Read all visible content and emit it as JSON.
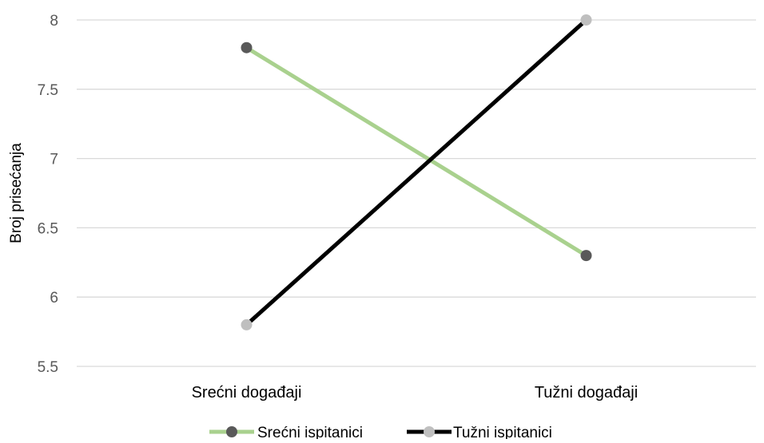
{
  "chart_data": {
    "type": "line",
    "title": "",
    "xlabel": "",
    "ylabel": "Broj prisećanja",
    "categories": [
      "Srećni događaji",
      "Tužni događaji"
    ],
    "ylim": [
      5.5,
      8
    ],
    "yticks": [
      "5.5",
      "6",
      "6.5",
      "7",
      "7.5",
      "8"
    ],
    "grid": true,
    "legend_position": "bottom",
    "series": [
      {
        "name": "Srećni ispitanici",
        "values": [
          7.8,
          6.3
        ],
        "line_color": "#a9d18e",
        "marker_color": "#595959"
      },
      {
        "name": "Tužni ispitanici",
        "values": [
          5.8,
          8.0
        ],
        "line_color": "#000000",
        "marker_color": "#bfbfbf"
      }
    ]
  }
}
